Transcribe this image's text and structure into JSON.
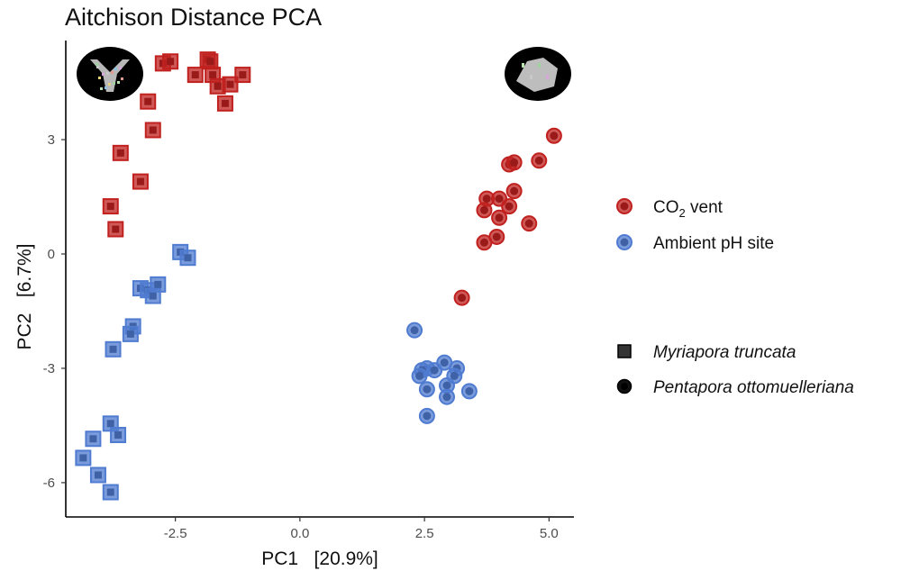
{
  "chart_data": {
    "type": "scatter",
    "title": "Aitchison Distance PCA",
    "xlabel": "PC1   [20.9%]",
    "ylabel": "PC2   [6.7%]",
    "xlim": [
      -4.7,
      5.5
    ],
    "ylim": [
      -6.9,
      5.6
    ],
    "xticks": [
      -2.5,
      0.0,
      2.5,
      5.0
    ],
    "xtick_labels": [
      "-2.5",
      "0.0",
      "2.5",
      "5.0"
    ],
    "yticks": [
      -6,
      -3,
      0,
      3
    ],
    "ytick_labels": [
      "-6",
      "-3",
      "0",
      "3"
    ],
    "grid": false,
    "legend_position": "right",
    "color_legend": [
      {
        "label": "CO2 vent",
        "label_main": "CO",
        "label_sub": "2",
        "label_rest": " vent",
        "color": "#c0211f"
      },
      {
        "label": "Ambient pH site",
        "color": "#4f7bd0"
      }
    ],
    "shape_legend": [
      {
        "label": "Myriapora truncata",
        "shape": "square"
      },
      {
        "label": "Pentapora ottomuelleriana",
        "shape": "circle"
      }
    ],
    "series": [
      {
        "site": "CO2 vent",
        "species": "Myriapora truncata",
        "shape": "square",
        "color": "#c0211f",
        "points": [
          [
            -2.75,
            5.0
          ],
          [
            -2.6,
            5.05
          ],
          [
            -1.85,
            5.1
          ],
          [
            -1.8,
            5.05
          ],
          [
            -2.1,
            4.7
          ],
          [
            -1.75,
            4.7
          ],
          [
            -1.65,
            4.4
          ],
          [
            -1.4,
            4.45
          ],
          [
            -1.15,
            4.7
          ],
          [
            -1.5,
            3.95
          ],
          [
            -3.05,
            4.0
          ],
          [
            -2.95,
            3.25
          ],
          [
            -3.6,
            2.65
          ],
          [
            -3.2,
            1.9
          ],
          [
            -3.8,
            1.25
          ],
          [
            -3.7,
            0.65
          ]
        ]
      },
      {
        "site": "Ambient pH site",
        "species": "Myriapora truncata",
        "shape": "square",
        "color": "#4f7bd0",
        "points": [
          [
            -2.4,
            0.05
          ],
          [
            -2.25,
            -0.1
          ],
          [
            -3.2,
            -0.9
          ],
          [
            -3.05,
            -0.95
          ],
          [
            -2.95,
            -1.1
          ],
          [
            -2.85,
            -0.8
          ],
          [
            -3.35,
            -1.9
          ],
          [
            -3.4,
            -2.1
          ],
          [
            -3.75,
            -2.5
          ],
          [
            -4.15,
            -4.85
          ],
          [
            -3.8,
            -4.45
          ],
          [
            -3.65,
            -4.75
          ],
          [
            -4.35,
            -5.35
          ],
          [
            -4.05,
            -5.8
          ],
          [
            -3.8,
            -6.25
          ]
        ]
      },
      {
        "site": "CO2 vent",
        "species": "Pentapora ottomuelleriana",
        "shape": "circle",
        "color": "#c0211f",
        "points": [
          [
            5.1,
            3.1
          ],
          [
            4.8,
            2.45
          ],
          [
            4.2,
            2.35
          ],
          [
            4.3,
            2.4
          ],
          [
            4.3,
            1.65
          ],
          [
            4.0,
            1.45
          ],
          [
            3.75,
            1.45
          ],
          [
            4.2,
            1.25
          ],
          [
            3.7,
            1.15
          ],
          [
            4.0,
            0.95
          ],
          [
            4.6,
            0.8
          ],
          [
            3.95,
            0.45
          ],
          [
            3.7,
            0.3
          ],
          [
            3.25,
            -1.15
          ]
        ]
      },
      {
        "site": "Ambient pH site",
        "species": "Pentapora ottomuelleriana",
        "shape": "circle",
        "color": "#4f7bd0",
        "points": [
          [
            2.3,
            -2.0
          ],
          [
            2.9,
            -2.85
          ],
          [
            2.55,
            -3.0
          ],
          [
            2.45,
            -3.05
          ],
          [
            2.7,
            -3.05
          ],
          [
            3.15,
            -3.0
          ],
          [
            2.4,
            -3.2
          ],
          [
            3.1,
            -3.2
          ],
          [
            2.95,
            -3.45
          ],
          [
            2.55,
            -3.55
          ],
          [
            3.4,
            -3.6
          ],
          [
            2.95,
            -3.75
          ],
          [
            2.55,
            -4.25
          ]
        ]
      }
    ]
  },
  "insets": [
    {
      "name": "myriapora-colony-inset",
      "description_icon": "branching-coral-3d-scan"
    },
    {
      "name": "pentapora-colony-inset",
      "description_icon": "foliose-bryozoan-3d-scan"
    }
  ]
}
